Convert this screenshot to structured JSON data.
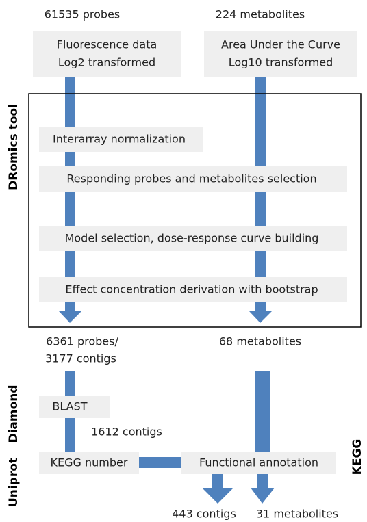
{
  "inputs": [
    {
      "count": "61535 probes",
      "lines": [
        "Fluorescence data",
        "Log2 transformed"
      ]
    },
    {
      "count": "224 metabolites",
      "lines": [
        "Area Under the Curve",
        "Log10 transformed"
      ]
    }
  ],
  "dromics": {
    "label": "DRomics tool",
    "steps": [
      "Interarray normalization",
      "Responding probes and metabolites selection",
      "Model selection, dose-response curve building",
      "Effect concentration derivation with bootstrap"
    ]
  },
  "outputs": {
    "probes": [
      "6361 probes/",
      "3177 contigs"
    ],
    "metabolites": "68 metabolites"
  },
  "diamond": {
    "label": "Diamond",
    "step": "BLAST",
    "result": "1612 contigs"
  },
  "uniprot": {
    "label": "Uniprot",
    "step": "KEGG number"
  },
  "kegg": {
    "label": "KEGG",
    "step": "Functional annotation"
  },
  "final": [
    "443 contigs",
    "31 metabolites"
  ]
}
